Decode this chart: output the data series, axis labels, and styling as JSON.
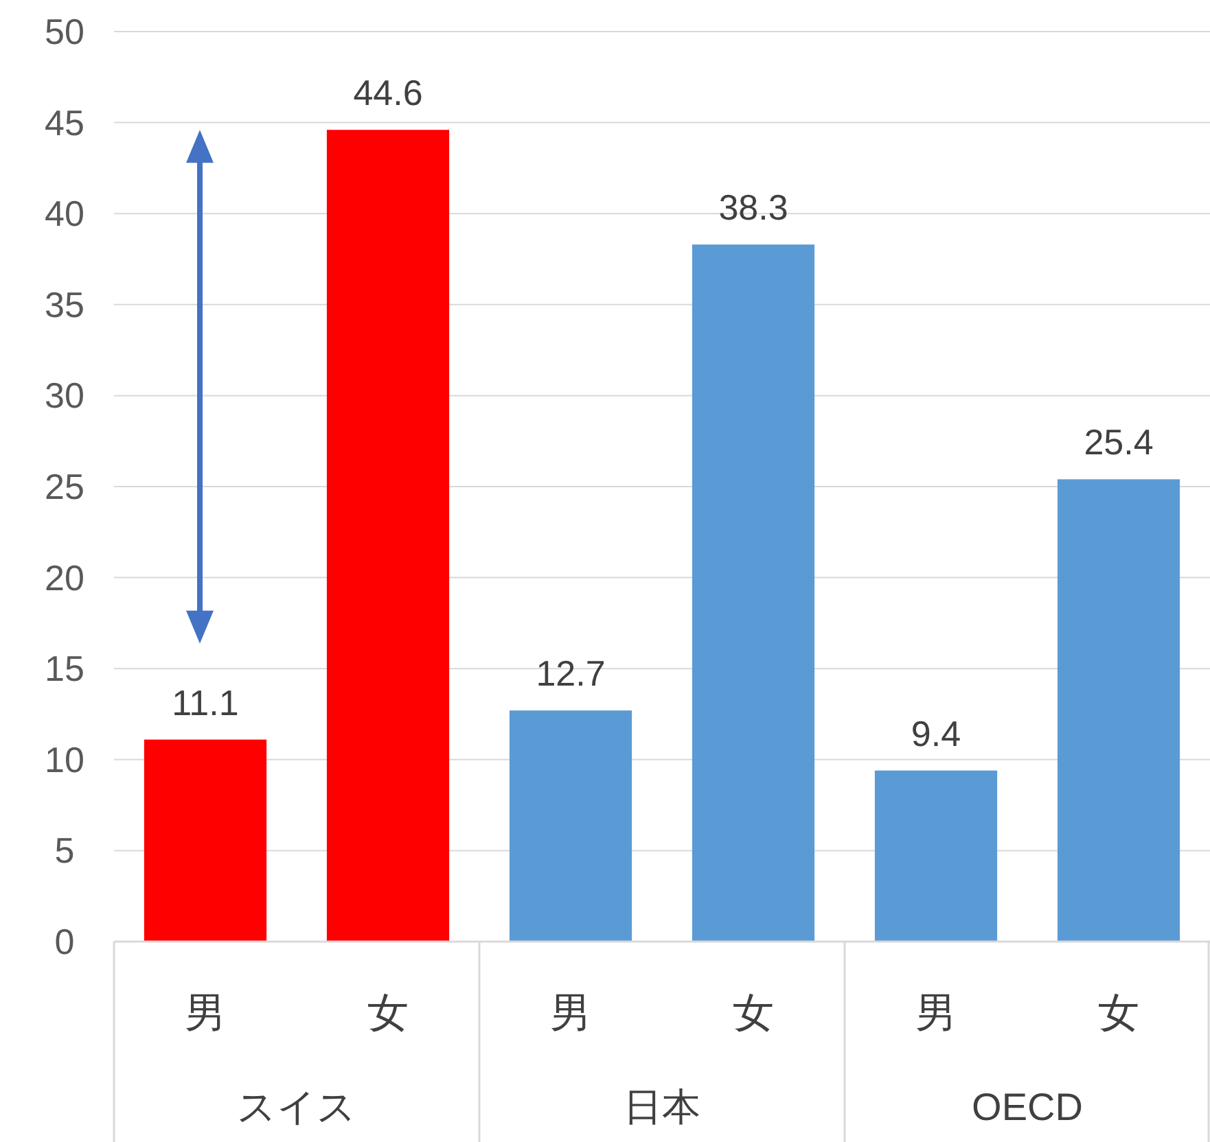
{
  "chart_data": {
    "type": "bar",
    "categories": [
      "男",
      "女",
      "男",
      "女",
      "男",
      "女"
    ],
    "values": [
      11.1,
      44.6,
      12.7,
      38.3,
      9.4,
      25.4
    ],
    "colors": [
      "#ff0000",
      "#ff0000",
      "#5b9bd5",
      "#5b9bd5",
      "#5b9bd5",
      "#5b9bd5"
    ],
    "ylim": [
      0,
      50
    ],
    "yticks": [
      0,
      5,
      10,
      15,
      20,
      25,
      30,
      35,
      40,
      45,
      50
    ],
    "grid": "y",
    "data_labels": true,
    "annotations": [
      "スイス",
      "日本",
      "OECD"
    ]
  }
}
